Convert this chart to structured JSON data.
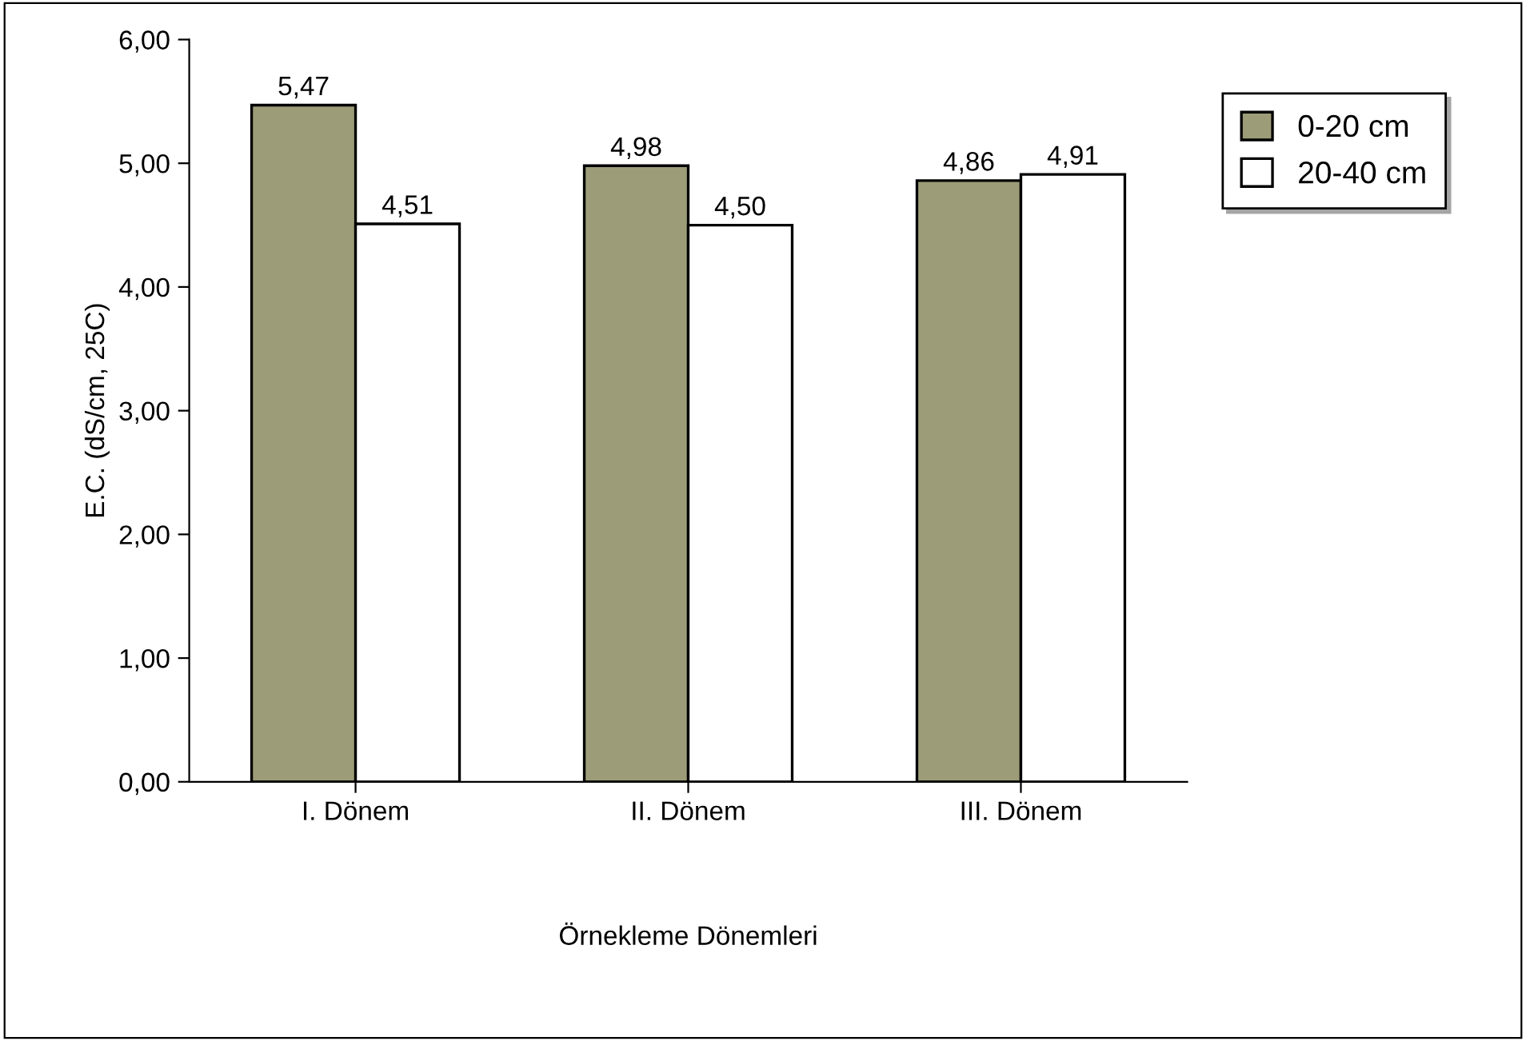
{
  "chart_data": {
    "type": "bar",
    "xlabel": "Örnekleme Dönemleri",
    "ylabel": "E.C. (dS/cm, 25C)",
    "categories": [
      "I. Dönem",
      "II. Dönem",
      "III. Dönem"
    ],
    "series": [
      {
        "name": "0-20 cm",
        "color": "#9c9c78",
        "values": [
          5.47,
          4.98,
          4.86
        ],
        "value_labels": [
          "5,47",
          "4,98",
          "4,86"
        ]
      },
      {
        "name": "20-40 cm",
        "color": "#ffffff",
        "values": [
          4.51,
          4.5,
          4.91
        ],
        "value_labels": [
          "4,51",
          "4,50",
          "4,91"
        ]
      }
    ],
    "ylim": [
      0,
      6
    ],
    "yticks": [
      {
        "value": 0,
        "label": "0,00"
      },
      {
        "value": 1,
        "label": "1,00"
      },
      {
        "value": 2,
        "label": "2,00"
      },
      {
        "value": 3,
        "label": "3,00"
      },
      {
        "value": 4,
        "label": "4,00"
      },
      {
        "value": 5,
        "label": "5,00"
      },
      {
        "value": 6,
        "label": "6,00"
      }
    ],
    "legend": "right",
    "grid": false
  }
}
